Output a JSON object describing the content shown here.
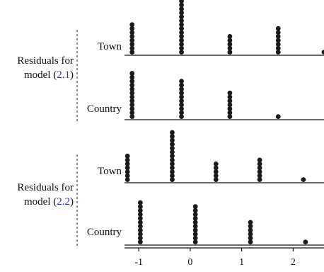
{
  "chart_data": {
    "type": "dot-plot",
    "x_axis": {
      "min": -1.25,
      "max": 2.6,
      "ticks": [
        -1,
        0,
        1,
        2
      ],
      "tick_labels": [
        "-1",
        "0",
        "1",
        "2"
      ]
    },
    "panels": [
      {
        "label_prefix": "Residuals for",
        "label_model": "model (",
        "label_ref": "2.1",
        "label_suffix": ")",
        "rows": [
          {
            "name": "Town",
            "stacks": [
              {
                "x": -1.13,
                "count": 8
              },
              {
                "x": -0.17,
                "count": 14
              },
              {
                "x": 0.77,
                "count": 5
              },
              {
                "x": 1.71,
                "count": 7
              },
              {
                "x": 2.6,
                "count": 1
              }
            ]
          },
          {
            "name": "Country",
            "stacks": [
              {
                "x": -1.13,
                "count": 12
              },
              {
                "x": -0.17,
                "count": 10
              },
              {
                "x": 0.77,
                "count": 7
              },
              {
                "x": 1.71,
                "count": 1
              }
            ]
          }
        ]
      },
      {
        "label_prefix": "Residuals for",
        "label_model": "model (",
        "label_ref": "2.2",
        "label_suffix": ")",
        "rows": [
          {
            "name": "Town",
            "stacks": [
              {
                "x": -1.22,
                "count": 7
              },
              {
                "x": -0.35,
                "count": 13
              },
              {
                "x": 0.5,
                "count": 5
              },
              {
                "x": 1.35,
                "count": 6
              },
              {
                "x": 2.2,
                "count": 1
              }
            ]
          },
          {
            "name": "Country",
            "stacks": [
              {
                "x": -0.97,
                "count": 11
              },
              {
                "x": 0.1,
                "count": 10
              },
              {
                "x": 1.17,
                "count": 6
              },
              {
                "x": 2.24,
                "count": 1
              }
            ]
          }
        ]
      }
    ]
  }
}
